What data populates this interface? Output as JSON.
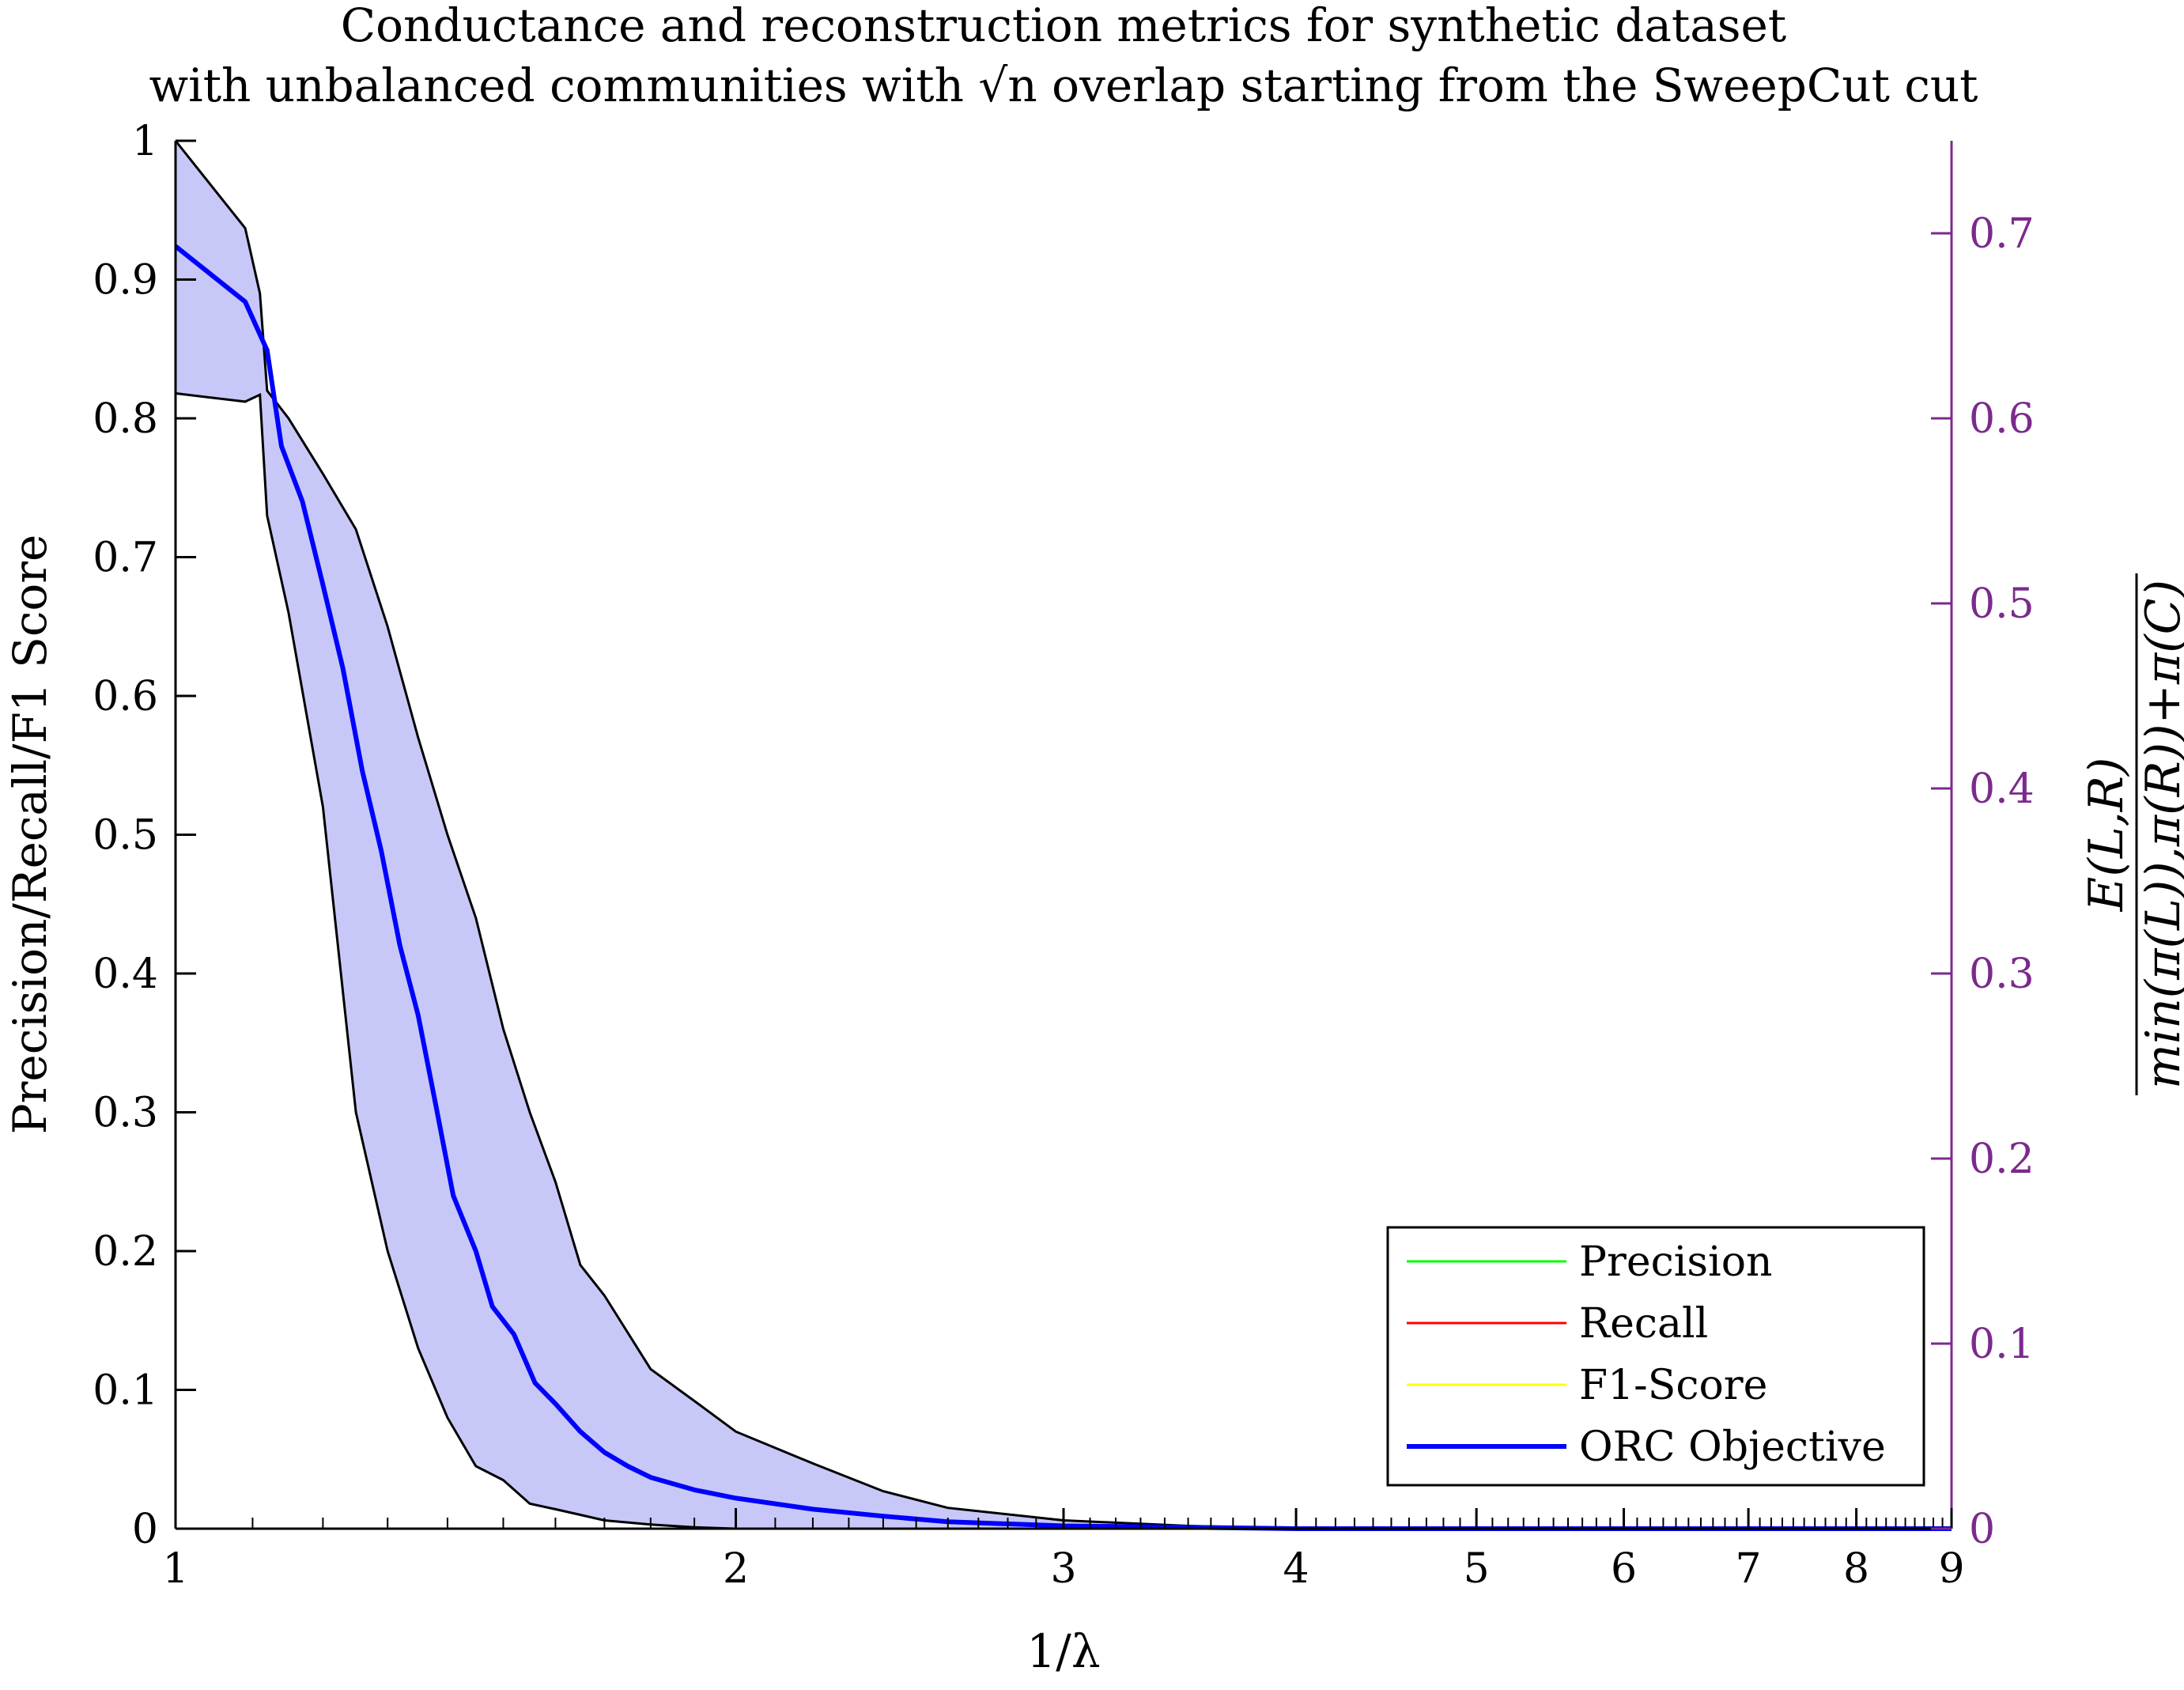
{
  "chart_data": {
    "type": "line",
    "title": [
      "Conductance and reconstruction metrics for synthetic dataset",
      "with unbalanced communities with √n overlap starting from the SweepCut cut"
    ],
    "xlabel": "1/λ",
    "ylabel": "Precision/Recall/F1 Score",
    "ylabel_right": {
      "numerator": "E(L,R)",
      "denominator": "min(π(L)),π(R))+π(C)"
    },
    "x_scale": "log",
    "xlim": [
      1,
      9
    ],
    "ylim": [
      0,
      1
    ],
    "ylim_right": [
      0,
      0.75
    ],
    "x_ticks": [
      1,
      2,
      3,
      4,
      5,
      6,
      7,
      8,
      9
    ],
    "x_tick_labels": [
      "1",
      "2",
      "3",
      "4",
      "5",
      "6",
      "7",
      "8",
      "9"
    ],
    "y_ticks": [
      0,
      0.1,
      0.2,
      0.3,
      0.4,
      0.5,
      0.6,
      0.7,
      0.8,
      0.9,
      1
    ],
    "y_tick_labels": [
      "0",
      "0.1",
      "0.2",
      "0.3",
      "0.4",
      "0.5",
      "0.6",
      "0.7",
      "0.8",
      "0.9",
      "1"
    ],
    "y_right_ticks": [
      0,
      0.1,
      0.2,
      0.3,
      0.4,
      0.5,
      0.6,
      0.7
    ],
    "y_right_tick_labels": [
      "0",
      "0.1",
      "0.2",
      "0.3",
      "0.4",
      "0.5",
      "0.6",
      "0.7"
    ],
    "legend_position": "bottom-right",
    "grid": false,
    "series": [
      {
        "name": "Precision",
        "color": "#00ff00",
        "x": [],
        "values": []
      },
      {
        "name": "Recall",
        "color": "#ff0000",
        "x": [],
        "values": []
      },
      {
        "name": "F1-Score",
        "color": "#ffff00",
        "x": [],
        "values": []
      },
      {
        "name": "ORC Objective",
        "color": "#0000ff",
        "x": [
          1.0,
          1.09,
          1.12,
          1.14,
          1.17,
          1.2,
          1.23,
          1.26,
          1.29,
          1.32,
          1.35,
          1.38,
          1.41,
          1.45,
          1.48,
          1.52,
          1.56,
          1.6,
          1.65,
          1.7,
          1.75,
          1.8,
          1.9,
          2.0,
          2.2,
          2.4,
          2.6,
          3.0,
          3.5,
          4.0,
          5.0,
          9.0
        ],
        "values": [
          0.924,
          0.884,
          0.849,
          0.78,
          0.74,
          0.68,
          0.62,
          0.546,
          0.488,
          0.42,
          0.37,
          0.305,
          0.24,
          0.2,
          0.16,
          0.14,
          0.105,
          0.09,
          0.07,
          0.055,
          0.045,
          0.037,
          0.028,
          0.022,
          0.014,
          0.009,
          0.005,
          0.002,
          0.001,
          0.0,
          0.0,
          0.0
        ]
      }
    ],
    "band": {
      "color": "#c8c8f8",
      "edge_color": "#000000",
      "x": [
        1.0,
        1.09,
        1.11,
        1.12,
        1.15,
        1.2,
        1.25,
        1.3,
        1.35,
        1.4,
        1.45,
        1.5,
        1.55,
        1.6,
        1.65,
        1.7,
        1.8,
        1.9,
        2.0,
        2.2,
        2.4,
        2.6,
        3.0,
        3.5,
        4.0,
        5.0,
        9.0
      ],
      "upper": [
        1.0,
        0.937,
        0.89,
        0.82,
        0.8,
        0.76,
        0.72,
        0.65,
        0.57,
        0.5,
        0.44,
        0.36,
        0.3,
        0.25,
        0.19,
        0.168,
        0.115,
        0.092,
        0.07,
        0.047,
        0.027,
        0.015,
        0.006,
        0.002,
        0.0,
        0.0,
        0.0
      ],
      "lower": [
        0.818,
        0.812,
        0.817,
        0.73,
        0.66,
        0.52,
        0.3,
        0.2,
        0.13,
        0.08,
        0.045,
        0.035,
        0.018,
        0.014,
        0.01,
        0.006,
        0.003,
        0.001,
        0.0,
        0.0,
        0.0,
        0.0,
        0.0,
        0.0,
        0.0,
        0.0,
        0.0
      ]
    }
  }
}
